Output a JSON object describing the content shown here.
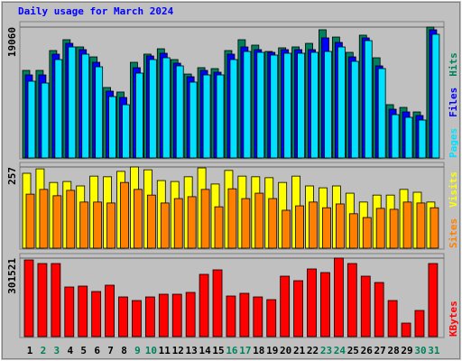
{
  "chart_data": [
    {
      "type": "bar",
      "title": "Daily usage for March 2024",
      "categories": [
        "1",
        "2",
        "3",
        "4",
        "5",
        "6",
        "7",
        "8",
        "9",
        "10",
        "11",
        "12",
        "13",
        "14",
        "15",
        "16",
        "17",
        "18",
        "19",
        "20",
        "21",
        "22",
        "23",
        "24",
        "25",
        "26",
        "27",
        "28",
        "29",
        "30",
        "31"
      ],
      "category_colors": [
        "#000000",
        "#00805c",
        "#00805c",
        "#000000",
        "#000000",
        "#000000",
        "#000000",
        "#000000",
        "#00805c",
        "#00805c",
        "#000000",
        "#000000",
        "#000000",
        "#000000",
        "#000000",
        "#00805c",
        "#00805c",
        "#000000",
        "#000000",
        "#000000",
        "#000000",
        "#000000",
        "#00805c",
        "#00805c",
        "#000000",
        "#000000",
        "#000000",
        "#000000",
        "#000000",
        "#00805c",
        "#00805c"
      ],
      "ylim": [
        0,
        19060
      ],
      "yticks": [
        19060
      ],
      "grid": true,
      "series": [
        {
          "name": "Hits",
          "color": "#00805c",
          "values": [
            12750,
            12750,
            15640,
            17220,
            16170,
            14720,
            10260,
            9600,
            13930,
            15120,
            15900,
            14330,
            12220,
            13150,
            13010,
            15640,
            17220,
            16430,
            15510,
            16040,
            16170,
            16690,
            18670,
            17610,
            15380,
            17880,
            14590,
            7760,
            7360,
            6700,
            19060
          ]
        },
        {
          "name": "Files",
          "color": "#0000ff",
          "values": [
            12093,
            12093,
            15117,
            16694,
            15774,
            13934,
            9727,
            8807,
            13145,
            14854,
            15248,
            13802,
            11831,
            12751,
            12488,
            15117,
            16168,
            15774,
            15380,
            15774,
            15774,
            15774,
            17483,
            16826,
            14722,
            17483,
            13408,
            7098,
            6704,
            6178,
            18666
          ]
        },
        {
          "name": "Pages",
          "color": "#00e0ff",
          "values": [
            11173,
            10910,
            14328,
            16168,
            15117,
            13276,
            8939,
            7756,
            12356,
            14328,
            14591,
            13408,
            11042,
            12093,
            12093,
            14328,
            15511,
            15380,
            14985,
            15248,
            15248,
            15380,
            15511,
            16168,
            14065,
            17089,
            13014,
            6310,
            5915,
            5521,
            18009
          ]
        }
      ]
    },
    {
      "type": "bar",
      "ylim": [
        0,
        257
      ],
      "yticks": [
        257
      ],
      "grid": true,
      "series": [
        {
          "name": "Visits",
          "color": "#ffff00",
          "values": [
            237,
            251,
            208,
            211,
            197,
            228,
            226,
            243,
            257,
            248,
            214,
            211,
            226,
            254,
            203,
            246,
            228,
            226,
            223,
            208,
            228,
            197,
            191,
            197,
            174,
            146,
            168,
            168,
            186,
            177,
            146
          ]
        },
        {
          "name": "Sites",
          "color": "#ff8000",
          "values": [
            171,
            186,
            166,
            183,
            146,
            146,
            143,
            208,
            186,
            168,
            143,
            157,
            163,
            186,
            131,
            188,
            157,
            174,
            157,
            120,
            134,
            146,
            128,
            140,
            109,
            97,
            126,
            123,
            146,
            143,
            128
          ]
        }
      ]
    },
    {
      "type": "bar",
      "ylim": [
        0,
        301521
      ],
      "yticks": [
        301521
      ],
      "grid": true,
      "series": [
        {
          "name": "KBytes",
          "color": "#ff0000",
          "values": [
            294593,
            280730,
            280730,
            190619,
            194085,
            173290,
            197551,
            152495,
            138632,
            152495,
            162893,
            162893,
            169824,
            239140,
            256469,
            155961,
            166358,
            152495,
            142098,
            232209,
            214880,
            259935,
            246072,
            301521,
            280730,
            232209,
            207948,
            138632,
            51987,
            100508,
            280730
          ]
        }
      ]
    }
  ]
}
